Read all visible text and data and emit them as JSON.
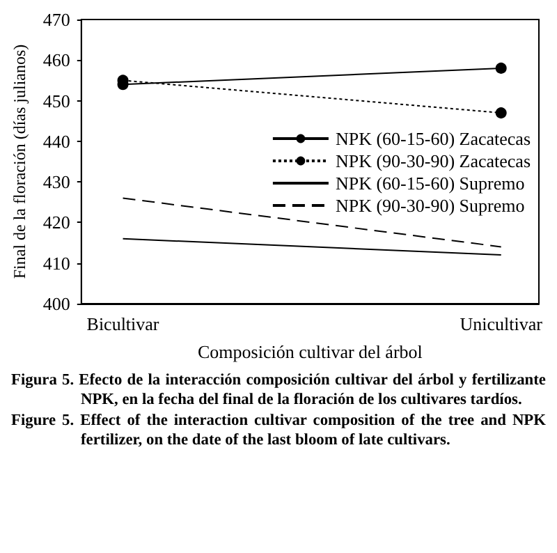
{
  "chart_data": {
    "type": "line",
    "xlabel": "Composición cultivar del árbol",
    "ylabel": "Final de la floración (días julianos)",
    "categories": [
      "Bicultivar",
      "Unicultivar"
    ],
    "series": [
      {
        "name": "NPK (60-15-60) Zacatecas",
        "color": "#000000",
        "values": [
          454,
          458
        ],
        "marker": "circle",
        "line_style": "solid"
      },
      {
        "name": "NPK (90-30-90) Zacatecas",
        "color": "#000000",
        "values": [
          455,
          447
        ],
        "marker": "circle",
        "line_style": "dotted"
      },
      {
        "name": "NPK (60-15-60) Supremo",
        "color": "#000000",
        "values": [
          416,
          412
        ],
        "marker": "none",
        "line_style": "solid"
      },
      {
        "name": "NPK (90-30-90) Supremo",
        "color": "#000000",
        "values": [
          426,
          414
        ],
        "marker": "none",
        "line_style": "dashed"
      }
    ],
    "ylim": [
      400,
      470
    ],
    "yticks": [
      400,
      410,
      420,
      430,
      440,
      450,
      460,
      470
    ],
    "grid": false,
    "legend": "right",
    "annotations": [
      "Figura 5. Efecto de la interacción composición cultivar del árbol y fertilizante NPK, en la fecha del final de la floración de los cultivares tardíos.",
      "Figure 5. Effect of the interaction cultivar composition of the tree and NPK fertilizer, on the date of the last bloom of late cultivars."
    ]
  }
}
